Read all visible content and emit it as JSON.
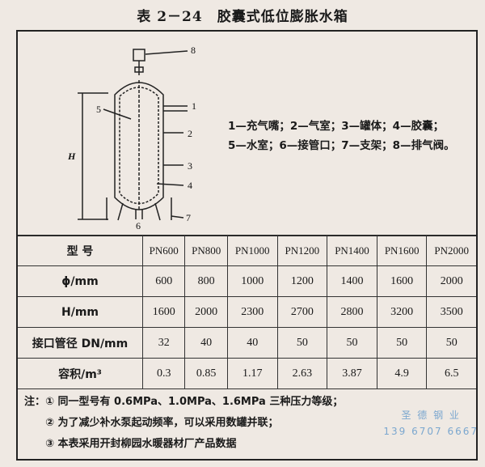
{
  "title": "表 2－24　胶囊式低位膨胀水箱",
  "figure": {
    "labels": [
      "1",
      "2",
      "3",
      "4",
      "5",
      "6",
      "7",
      "8",
      "H"
    ],
    "legend": [
      "1—充气嘴；2—气室；3—罐体；4—胶囊；",
      "5—水室；6—接管口；7—支架；8—排气阀。"
    ]
  },
  "table": {
    "rows": [
      [
        "型 号",
        "PN600",
        "PN800",
        "PN1000",
        "PN1200",
        "PN1400",
        "PN1600",
        "PN2000"
      ],
      [
        "ϕ/mm",
        "600",
        "800",
        "1000",
        "1200",
        "1400",
        "1600",
        "2000"
      ],
      [
        "H/mm",
        "1600",
        "2000",
        "2300",
        "2700",
        "2800",
        "3200",
        "3500"
      ],
      [
        "接口管径 DN/mm",
        "32",
        "40",
        "40",
        "50",
        "50",
        "50",
        "50"
      ],
      [
        "容积/m³",
        "0.3",
        "0.85",
        "1.17",
        "2.63",
        "3.87",
        "4.9",
        "6.5"
      ]
    ]
  },
  "notes": [
    "注：① 同一型号有 0.6MPa、1.0MPa、1.6MPa 三种压力等级；",
    "② 为了减少补水泵起动频率，可以采用数罐并联；",
    "③ 本表采用开封柳园水暖器材厂产品数据"
  ],
  "watermark": {
    "name": "圣 德 钢 业",
    "phone": "139 6707 6667"
  }
}
